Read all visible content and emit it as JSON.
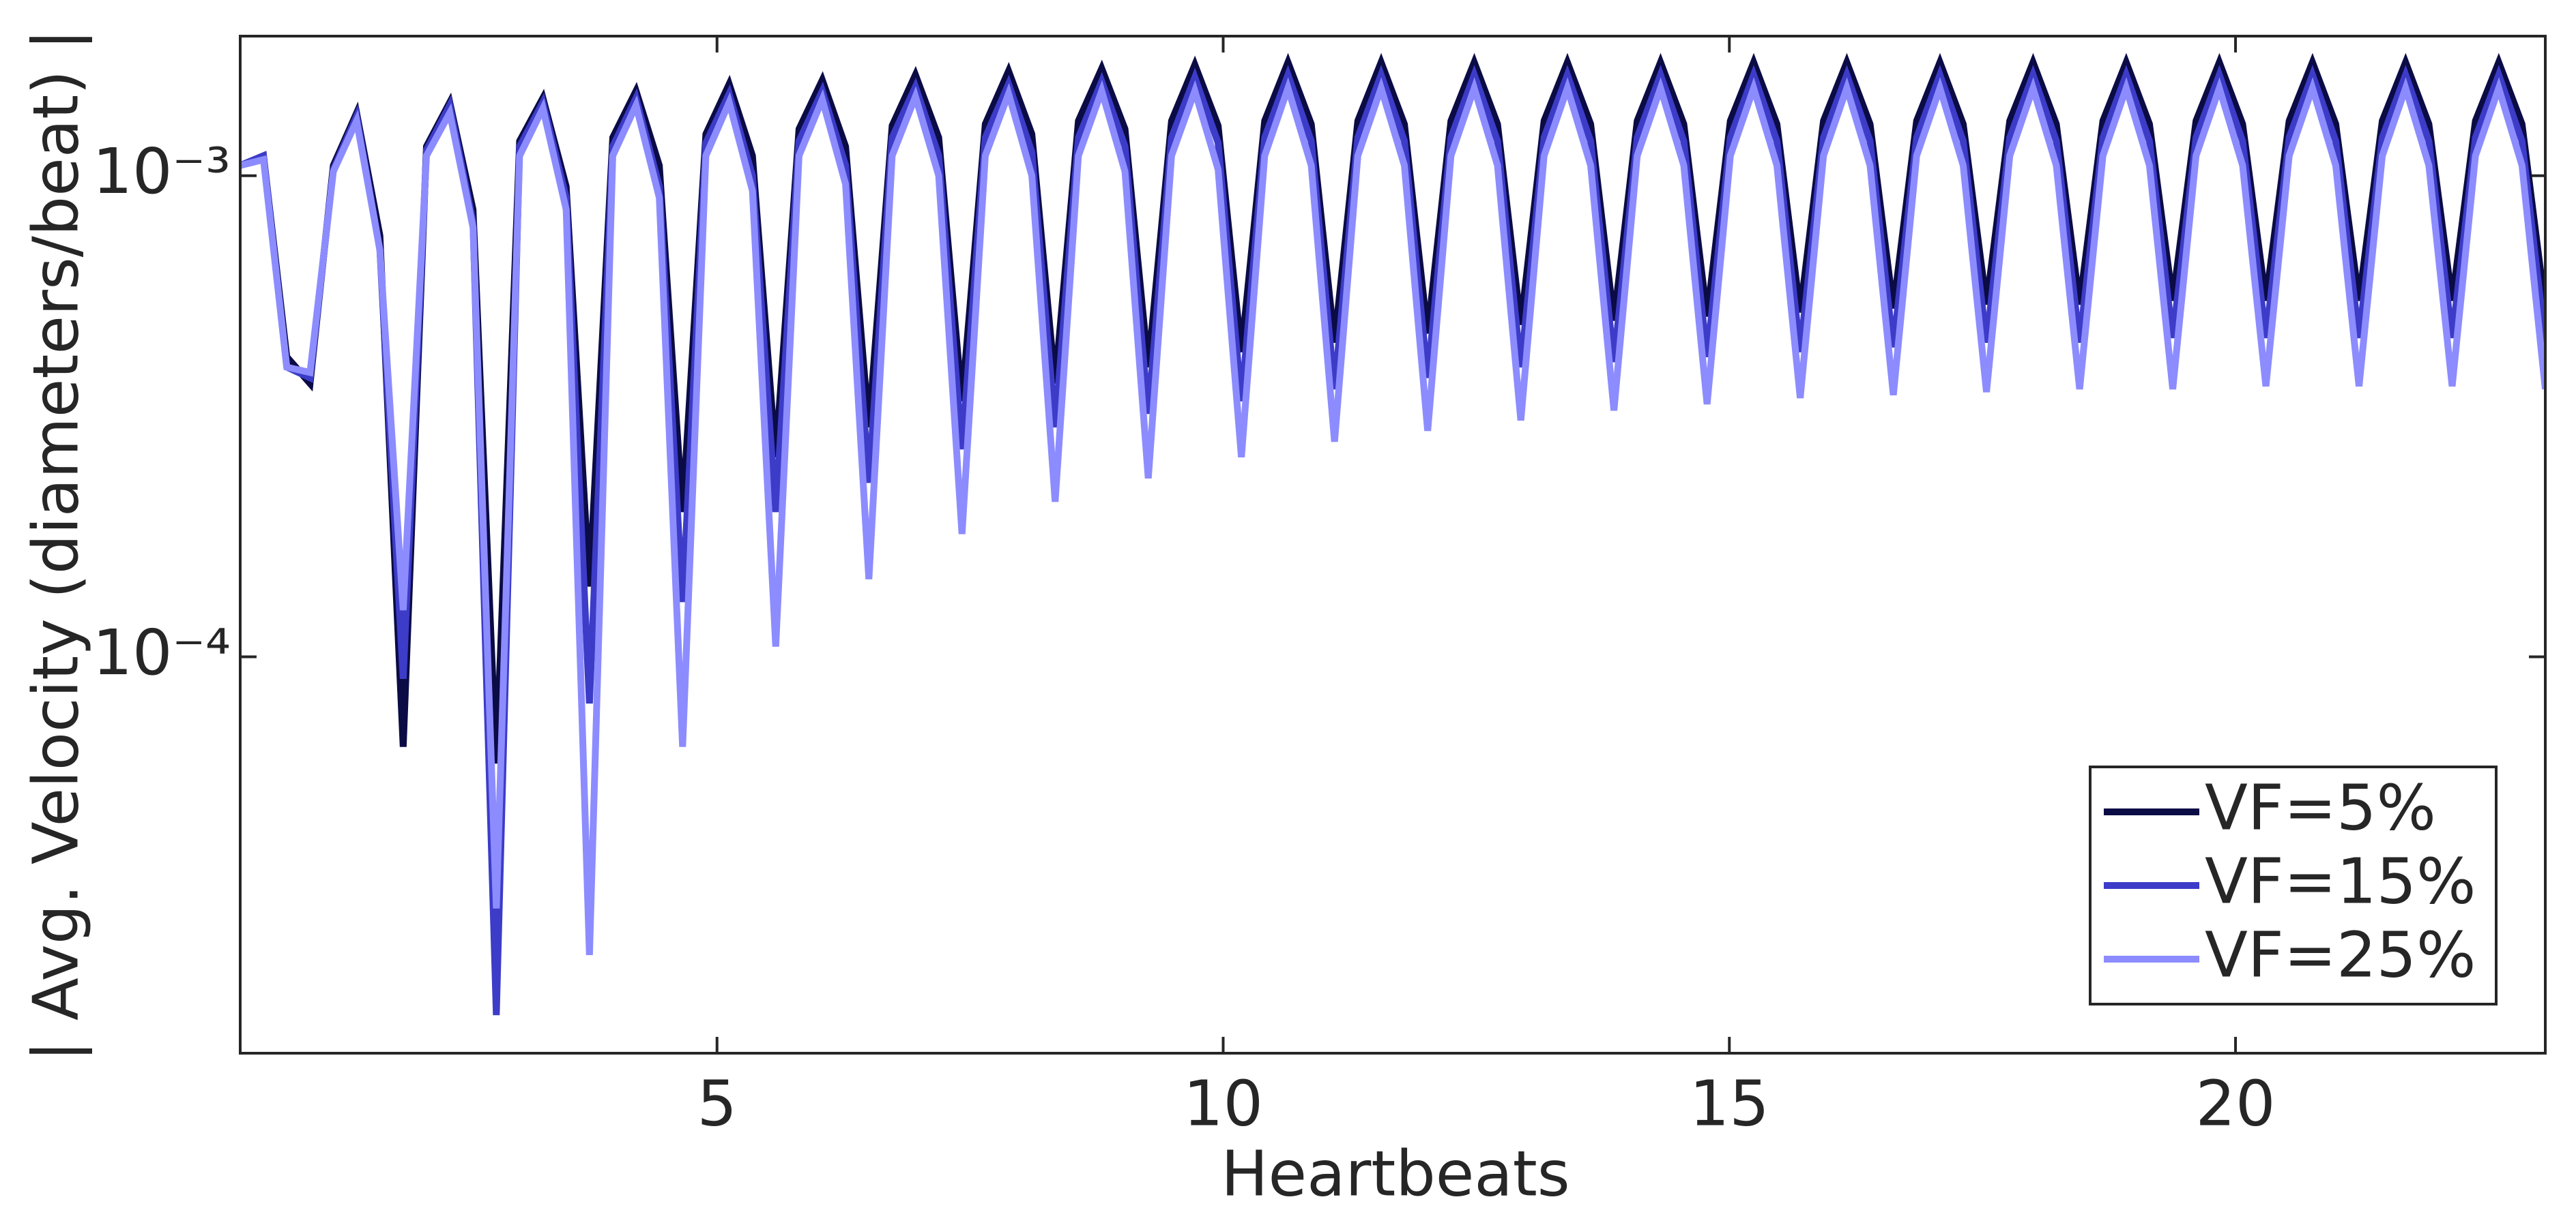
{
  "chart_data": {
    "type": "line",
    "xlabel": "Heartbeats",
    "ylabel": "| Avg. Velocity (diameters/beat) |",
    "yscale": "log",
    "grid": false,
    "legend_position": "lower right",
    "xlim": [
      0.29,
      23.06
    ],
    "ylim": [
      1.5e-05,
      0.00195
    ],
    "xticks": [
      5,
      10,
      15,
      20
    ],
    "yticks": [
      {
        "value": 0.0001,
        "label": "10⁻⁴"
      },
      {
        "value": 0.001,
        "label": "10⁻³"
      }
    ],
    "x": [
      0.29,
      0.52,
      0.75,
      0.98,
      1.21,
      1.44,
      1.67,
      1.9,
      2.13,
      2.36,
      2.59,
      2.82,
      3.05,
      3.28,
      3.51,
      3.74,
      3.97,
      4.2,
      4.43,
      4.66,
      4.89,
      5.12,
      5.35,
      5.58,
      5.81,
      6.04,
      6.27,
      6.5,
      6.73,
      6.96,
      7.19,
      7.42,
      7.65,
      7.88,
      8.11,
      8.34,
      8.57,
      8.8,
      9.03,
      9.26,
      9.49,
      9.72,
      9.95,
      10.18,
      10.41,
      10.64,
      10.87,
      11.1,
      11.33,
      11.56,
      11.79,
      12.02,
      12.25,
      12.48,
      12.71,
      12.94,
      13.17,
      13.4,
      13.63,
      13.86,
      14.09,
      14.32,
      14.55,
      14.78,
      15.01,
      15.24,
      15.47,
      15.7,
      15.93,
      16.16,
      16.39,
      16.62,
      16.85,
      17.08,
      17.31,
      17.54,
      17.77,
      18.0,
      18.23,
      18.46,
      18.69,
      18.92,
      19.15,
      19.38,
      19.61,
      19.84,
      20.07,
      20.3,
      20.53,
      20.76,
      20.99,
      21.22,
      21.45,
      21.68,
      21.91,
      22.14,
      22.37,
      22.6,
      22.83,
      23.06
    ],
    "series": [
      {
        "name": "VF=5%",
        "color": "#0b0b45",
        "values": [
          0.00105,
          0.0011,
          0.00042,
          0.00037,
          0.00105,
          0.00135,
          0.00075,
          6.5e-05,
          0.00115,
          0.00142,
          0.00085,
          6e-05,
          0.00118,
          0.00145,
          0.00095,
          0.00014,
          0.0012,
          0.0015,
          0.00105,
          0.0002,
          0.00122,
          0.00155,
          0.0011,
          0.00026,
          0.00125,
          0.00158,
          0.00115,
          0.0003,
          0.00127,
          0.00162,
          0.0012,
          0.00034,
          0.00128,
          0.00165,
          0.00122,
          0.00037,
          0.0013,
          0.00167,
          0.00125,
          0.0004,
          0.0013,
          0.0017,
          0.00127,
          0.00043,
          0.0013,
          0.00172,
          0.00128,
          0.00045,
          0.0013,
          0.00172,
          0.00128,
          0.00047,
          0.0013,
          0.00172,
          0.00128,
          0.00049,
          0.0013,
          0.00172,
          0.00128,
          0.0005,
          0.0013,
          0.00172,
          0.00128,
          0.00051,
          0.0013,
          0.00172,
          0.00128,
          0.00052,
          0.0013,
          0.00172,
          0.00128,
          0.00053,
          0.0013,
          0.00172,
          0.00128,
          0.00054,
          0.0013,
          0.00172,
          0.00128,
          0.00054,
          0.0013,
          0.00172,
          0.00128,
          0.00055,
          0.0013,
          0.00172,
          0.00128,
          0.00055,
          0.0013,
          0.00172,
          0.00128,
          0.00055,
          0.0013,
          0.00172,
          0.00128,
          0.00055,
          0.0013,
          0.00172,
          0.00128,
          0.00053
        ]
      },
      {
        "name": "VF=15%",
        "color": "#3c3cc8",
        "values": [
          0.00105,
          0.0011,
          0.0004,
          0.00038,
          0.00103,
          0.00133,
          0.0007,
          9e-05,
          0.00113,
          0.0014,
          0.0008,
          1.8e-05,
          0.00115,
          0.00142,
          0.0009,
          8e-05,
          0.00115,
          0.00145,
          0.00095,
          0.00013,
          0.00117,
          0.00148,
          0.001,
          0.0002,
          0.00118,
          0.0015,
          0.00105,
          0.00023,
          0.0012,
          0.00153,
          0.0011,
          0.00027,
          0.0012,
          0.00155,
          0.00112,
          0.0003,
          0.0012,
          0.00157,
          0.00115,
          0.00032,
          0.0012,
          0.0016,
          0.00117,
          0.00034,
          0.0012,
          0.00162,
          0.00118,
          0.00036,
          0.0012,
          0.00162,
          0.00118,
          0.00038,
          0.0012,
          0.00162,
          0.00118,
          0.0004,
          0.0012,
          0.00162,
          0.00118,
          0.00041,
          0.0012,
          0.00162,
          0.00118,
          0.00042,
          0.0012,
          0.00162,
          0.00118,
          0.00043,
          0.0012,
          0.00162,
          0.00118,
          0.00044,
          0.0012,
          0.00162,
          0.00118,
          0.00045,
          0.0012,
          0.00162,
          0.00118,
          0.00045,
          0.0012,
          0.00162,
          0.00118,
          0.00046,
          0.0012,
          0.00162,
          0.00118,
          0.00046,
          0.0012,
          0.00162,
          0.00118,
          0.00046,
          0.0012,
          0.00162,
          0.00118,
          0.00046,
          0.0012,
          0.00162,
          0.00118,
          0.00045
        ]
      },
      {
        "name": "VF=25%",
        "color": "#8c8cff",
        "values": [
          0.00105,
          0.00108,
          0.0004,
          0.00039,
          0.00102,
          0.0013,
          0.0007,
          0.000125,
          0.0011,
          0.00135,
          0.00078,
          3e-05,
          0.0011,
          0.00138,
          0.00085,
          2.4e-05,
          0.0011,
          0.0014,
          0.0009,
          6.5e-05,
          0.0011,
          0.00142,
          0.00093,
          0.000105,
          0.0011,
          0.00144,
          0.00096,
          0.000145,
          0.0011,
          0.00146,
          0.001,
          0.00018,
          0.0011,
          0.00148,
          0.001,
          0.00021,
          0.0011,
          0.0015,
          0.00102,
          0.000235,
          0.0011,
          0.0015,
          0.00103,
          0.00026,
          0.0011,
          0.00152,
          0.00105,
          0.00028,
          0.0011,
          0.00152,
          0.00105,
          0.000295,
          0.0011,
          0.00152,
          0.00105,
          0.00031,
          0.0011,
          0.00152,
          0.00105,
          0.000325,
          0.0011,
          0.00152,
          0.00105,
          0.000335,
          0.0011,
          0.00152,
          0.00105,
          0.000345,
          0.0011,
          0.00152,
          0.00105,
          0.00035,
          0.0011,
          0.00152,
          0.00105,
          0.000355,
          0.0011,
          0.00152,
          0.00105,
          0.00036,
          0.0011,
          0.00152,
          0.00105,
          0.00036,
          0.0011,
          0.00152,
          0.00105,
          0.000365,
          0.0011,
          0.00152,
          0.00105,
          0.000365,
          0.0011,
          0.00152,
          0.00105,
          0.000365,
          0.0011,
          0.00152,
          0.00105,
          0.00036
        ]
      }
    ]
  }
}
